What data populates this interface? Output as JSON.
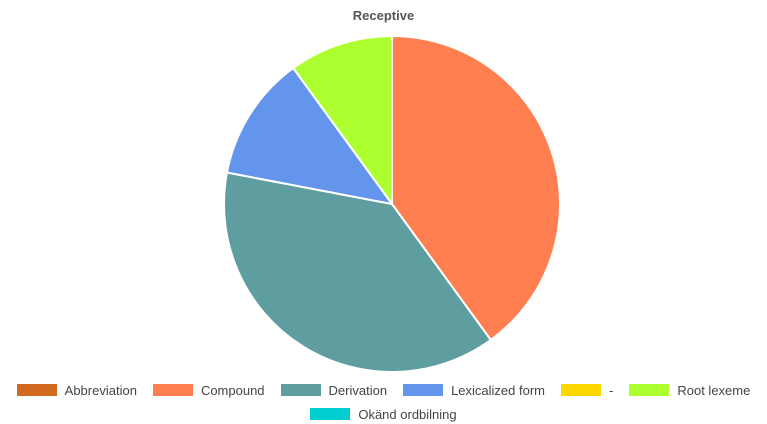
{
  "chart_data": {
    "type": "pie",
    "title": "Receptive",
    "categories": [
      "Abbreviation",
      "Compound",
      "Derivation",
      "Lexicalized form",
      "-",
      "Root lexeme",
      "Okänd ordbilning"
    ],
    "values": [
      0,
      40,
      38,
      12,
      0,
      10,
      0
    ],
    "colors": [
      "#D2691E",
      "#FF7F50",
      "#5F9EA0",
      "#6495ED",
      "#FFD700",
      "#ADFF2F",
      "#00CED1"
    ],
    "legend_position": "bottom",
    "grid": false
  }
}
